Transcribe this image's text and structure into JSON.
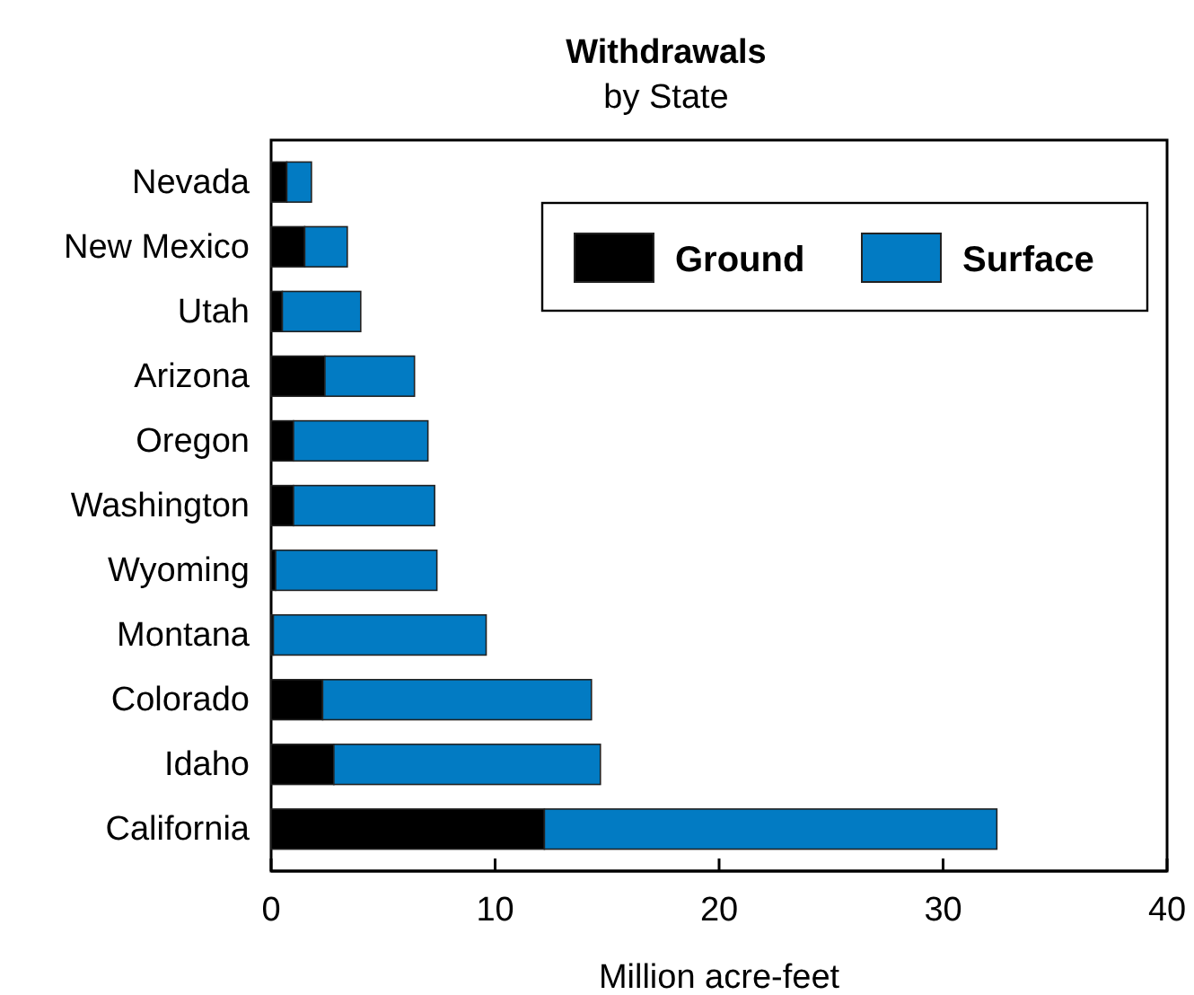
{
  "chart_data": {
    "type": "bar",
    "title": "Withdrawals",
    "subtitle": "by State",
    "xlabel": "Million acre-feet",
    "orientation": "horizontal",
    "stacked": true,
    "categories": [
      "Nevada",
      "New Mexico",
      "Utah",
      "Arizona",
      "Oregon",
      "Washington",
      "Wyoming",
      "Montana",
      "Colorado",
      "Idaho",
      "California"
    ],
    "series": [
      {
        "name": "Ground",
        "color": "#000000",
        "values": [
          0.7,
          1.5,
          0.5,
          2.4,
          1.0,
          1.0,
          0.2,
          0.1,
          2.3,
          2.8,
          12.2
        ]
      },
      {
        "name": "Surface",
        "color": "#027bc3",
        "values": [
          1.1,
          1.9,
          3.5,
          4.0,
          6.0,
          6.3,
          7.2,
          9.5,
          12.0,
          11.9,
          20.2
        ]
      }
    ],
    "xlim": [
      0,
      40
    ],
    "xticks": [
      0,
      10,
      20,
      30,
      40
    ],
    "legend": "top right",
    "grid": false
  }
}
